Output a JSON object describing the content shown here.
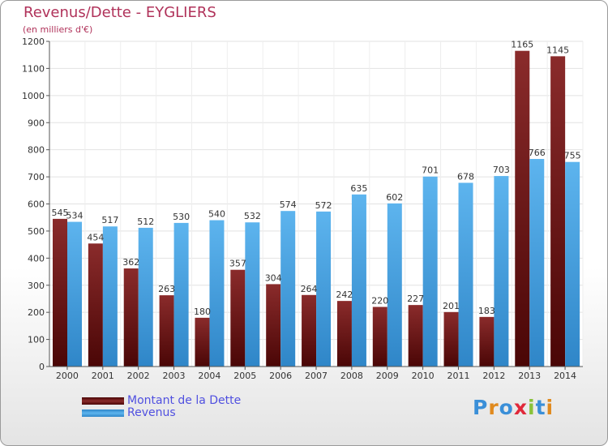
{
  "title": "Revenus/Dette - EYGLIERS",
  "subtitle": "(en milliers d'€)",
  "colors": {
    "title": "#b0325a",
    "debt_bar": "#7a1c1c",
    "revenue_bar": "#4aa3e0",
    "legend_text": "#5050e0",
    "background": "#ffffff"
  },
  "legend": {
    "items": [
      {
        "label": "Montant de la Dette",
        "color": "#7a1c1c"
      },
      {
        "label": "Revenus",
        "color": "#4aa3e0"
      }
    ]
  },
  "logo": {
    "text": "Proxiti",
    "colors": [
      "#3a8fd8",
      "#e08a1e",
      "#3a8fd8",
      "#e0283a",
      "#8ac23a",
      "#3a8fd8",
      "#e08a1e"
    ]
  },
  "chart_data": {
    "type": "bar",
    "title": "Revenus/Dette - EYGLIERS",
    "subtitle": "(en milliers d'€)",
    "categories": [
      "2000",
      "2001",
      "2002",
      "2003",
      "2004",
      "2005",
      "2006",
      "2007",
      "2008",
      "2009",
      "2010",
      "2011",
      "2012",
      "2013",
      "2014"
    ],
    "series": [
      {
        "name": "Montant de la Dette",
        "values": [
          545,
          454,
          362,
          263,
          180,
          357,
          304,
          264,
          242,
          220,
          227,
          201,
          183,
          1165,
          1145
        ]
      },
      {
        "name": "Revenus",
        "values": [
          534,
          517,
          512,
          530,
          540,
          532,
          574,
          572,
          635,
          602,
          701,
          678,
          703,
          766,
          755
        ]
      }
    ],
    "ylim": [
      0,
      1200
    ],
    "yticks": [
      0,
      100,
      200,
      300,
      400,
      500,
      600,
      700,
      800,
      900,
      1000,
      1100,
      1200
    ],
    "grid": true,
    "legend_position": "bottom-left"
  }
}
